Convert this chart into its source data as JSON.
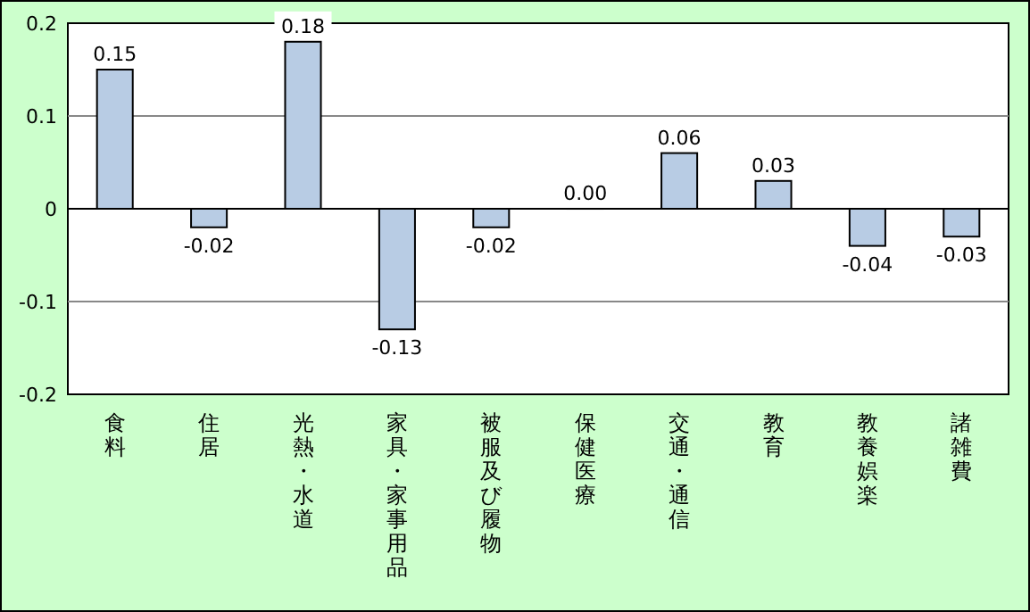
{
  "chart_data": {
    "type": "bar",
    "categories": [
      "食料",
      "住居",
      "光熱・水道",
      "家具・家事用品",
      "被服及び履物",
      "保健医療",
      "交通・通信",
      "教育",
      "教養娯楽",
      "諸雑費"
    ],
    "values": [
      0.15,
      -0.02,
      0.18,
      -0.13,
      -0.02,
      0.0,
      0.06,
      0.03,
      -0.04,
      -0.03
    ],
    "value_labels": [
      "0.15",
      "-0.02",
      "0.18",
      "-0.13",
      "-0.02",
      "0.00",
      "0.06",
      "0.03",
      "-0.04",
      "-0.03"
    ],
    "color": "#b8cce4",
    "ylim": [
      -0.2,
      0.2
    ],
    "yticks": [
      -0.2,
      -0.1,
      0,
      0.1,
      0.2
    ],
    "grid": "y"
  }
}
